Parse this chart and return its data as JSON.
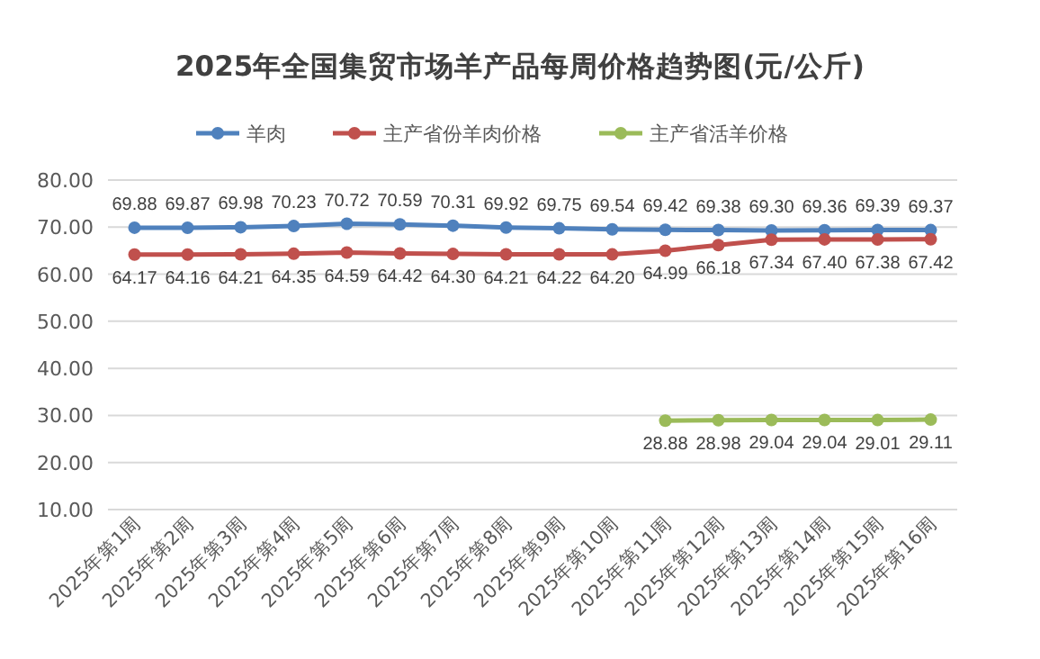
{
  "chart_data": {
    "type": "line",
    "title": "2025年全国集贸市场羊产品每周价格趋势图(元/公斤)",
    "categories": [
      "2025年第1周",
      "2025年第2周",
      "2025年第3周",
      "2025年第4周",
      "2025年第5周",
      "2025年第6周",
      "2025年第7周",
      "2025年第8周",
      "2025年第9周",
      "2025年第10周",
      "2025年第11周",
      "2025年第12周",
      "2025年第13周",
      "2025年第14周",
      "2025年第15周",
      "2025年第16周"
    ],
    "series": [
      {
        "name": "羊肉",
        "color": "#4f81bd",
        "values": [
          69.88,
          69.87,
          69.98,
          70.23,
          70.72,
          70.59,
          70.31,
          69.92,
          69.75,
          69.54,
          69.42,
          69.38,
          69.3,
          69.36,
          69.39,
          69.37
        ],
        "value_labels": [
          "69.88",
          "69.87",
          "69.98",
          "70.23",
          "70.72",
          "70.59",
          "70.31",
          "69.92",
          "69.75",
          "69.54",
          "69.42",
          "69.38",
          "69.30",
          "69.36",
          "69.39",
          "69.37"
        ]
      },
      {
        "name": "主产省份羊肉价格",
        "color": "#c0504d",
        "values": [
          64.17,
          64.16,
          64.21,
          64.35,
          64.59,
          64.42,
          64.3,
          64.21,
          64.22,
          64.2,
          64.99,
          66.18,
          67.34,
          67.4,
          67.38,
          67.42
        ],
        "value_labels": [
          "64.17",
          "64.16",
          "64.21",
          "64.35",
          "64.59",
          "64.42",
          "64.30",
          "64.21",
          "64.22",
          "64.20",
          "64.99",
          "66.18",
          "67.34",
          "67.40",
          "67.38",
          "67.42"
        ]
      },
      {
        "name": "主产省活羊价格",
        "color": "#9bbb59",
        "values": [
          null,
          null,
          null,
          null,
          null,
          null,
          null,
          null,
          null,
          null,
          28.88,
          28.98,
          29.04,
          29.04,
          29.01,
          29.11
        ],
        "value_labels": [
          null,
          null,
          null,
          null,
          null,
          null,
          null,
          null,
          null,
          null,
          "28.88",
          "28.98",
          "29.04",
          "29.04",
          "29.01",
          "29.11"
        ]
      }
    ],
    "ylim": [
      10,
      80
    ],
    "yticks": [
      {
        "value": 10,
        "label": "10.00"
      },
      {
        "value": 20,
        "label": "20.00"
      },
      {
        "value": 30,
        "label": "30.00"
      },
      {
        "value": 40,
        "label": "40.00"
      },
      {
        "value": 50,
        "label": "50.00"
      },
      {
        "value": 60,
        "label": "60.00"
      },
      {
        "value": 70,
        "label": "70.00"
      },
      {
        "value": 80,
        "label": "80.00"
      }
    ],
    "grid": "y",
    "legend": "top",
    "marker": "circle"
  }
}
